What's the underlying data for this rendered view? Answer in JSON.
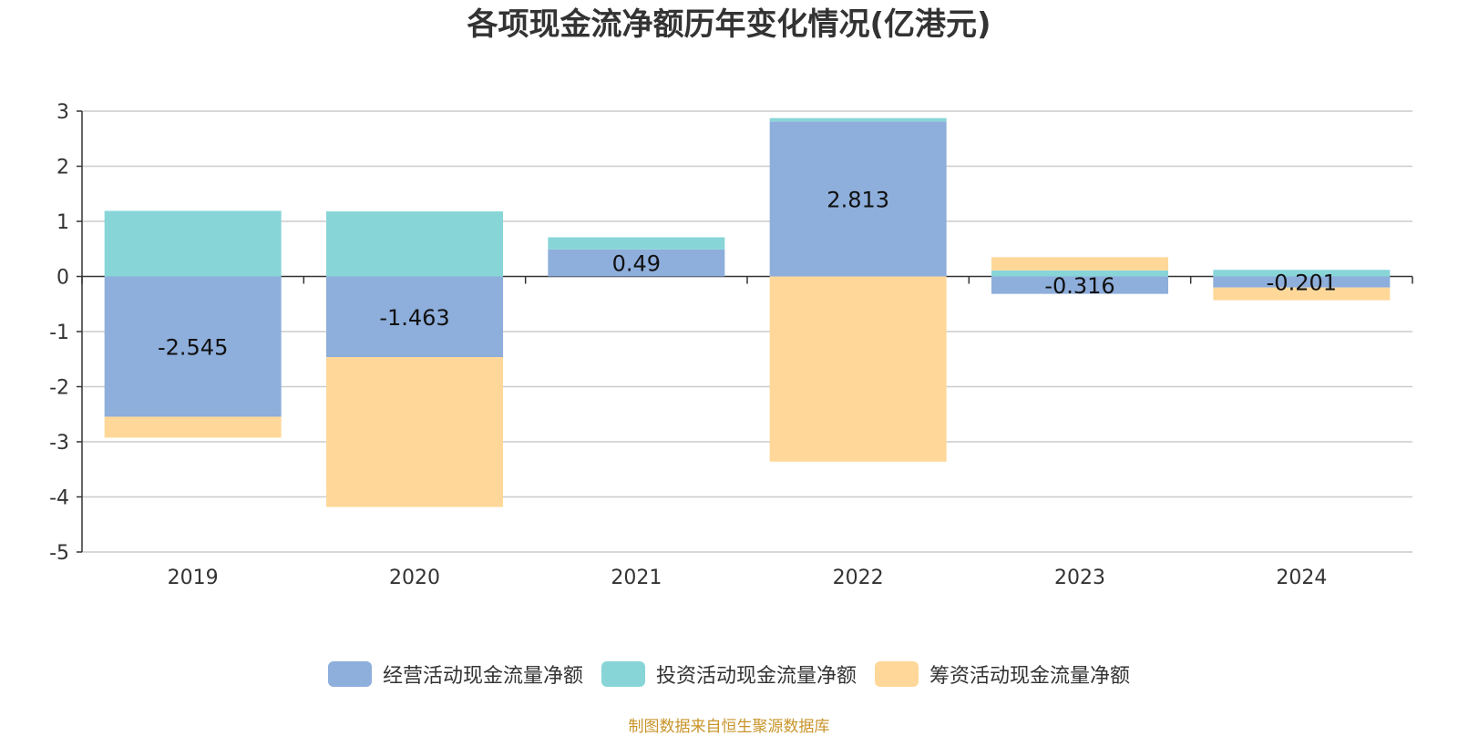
{
  "title": "各项现金流净额历年变化情况(亿港元)",
  "source": "制图数据来自恒生聚源数据库",
  "chart_data": {
    "type": "bar",
    "stacked": true,
    "categories": [
      "2019",
      "2020",
      "2021",
      "2022",
      "2023",
      "2024"
    ],
    "series": [
      {
        "name": "经营活动现金流量净额",
        "color": "#8eaedb",
        "values": [
          -2.545,
          -1.463,
          0.49,
          2.813,
          -0.316,
          -0.201
        ],
        "data_labels": [
          "-2.545",
          "-1.463",
          "0.49",
          "2.813",
          "-0.316",
          "-0.201"
        ]
      },
      {
        "name": "投资活动现金流量净额",
        "color": "#88d5d8",
        "values": [
          1.19,
          1.18,
          0.22,
          0.06,
          0.11,
          0.12
        ]
      },
      {
        "name": "筹资活动现金流量净额",
        "color": "#ffd899",
        "values": [
          -0.38,
          -2.72,
          0.0,
          -3.36,
          0.24,
          -0.23
        ]
      }
    ],
    "ylim": [
      -5,
      3
    ],
    "yticks": [
      3,
      2,
      1,
      0,
      -1,
      -2,
      -3,
      -4,
      -5
    ],
    "grid": true,
    "legend_position": "bottom"
  }
}
